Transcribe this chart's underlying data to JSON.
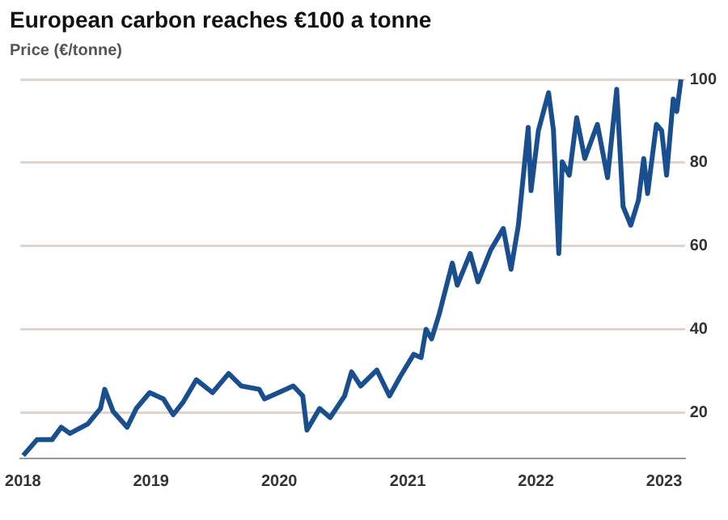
{
  "chart_data": {
    "type": "line",
    "title": "European carbon reaches €100 a tonne",
    "ylabel": "Price (€/tonne)",
    "x": [
      "2018-01-02",
      "2018-02-10",
      "2018-03-25",
      "2018-04-20",
      "2018-05-15",
      "2018-07-05",
      "2018-08-10",
      "2018-08-22",
      "2018-09-15",
      "2018-10-25",
      "2018-11-20",
      "2018-12-28",
      "2019-02-05",
      "2019-03-05",
      "2019-04-03",
      "2019-05-10",
      "2019-06-25",
      "2019-08-10",
      "2019-09-15",
      "2019-11-05",
      "2019-11-20",
      "2020-02-10",
      "2020-03-08",
      "2020-03-20",
      "2020-04-25",
      "2020-05-25",
      "2020-07-05",
      "2020-07-25",
      "2020-08-20",
      "2020-10-05",
      "2020-11-10",
      "2020-12-10",
      "2021-01-18",
      "2021-02-08",
      "2021-02-22",
      "2021-03-10",
      "2021-04-01",
      "2021-05-08",
      "2021-05-22",
      "2021-06-28",
      "2021-07-20",
      "2021-08-25",
      "2021-09-30",
      "2021-10-22",
      "2021-11-12",
      "2021-12-10",
      "2021-12-18",
      "2022-01-08",
      "2022-02-06",
      "2022-02-20",
      "2022-03-07",
      "2022-03-17",
      "2022-04-06",
      "2022-04-27",
      "2022-05-20",
      "2022-06-25",
      "2022-07-24",
      "2022-08-19",
      "2022-09-06",
      "2022-09-28",
      "2022-10-20",
      "2022-11-04",
      "2022-11-15",
      "2022-12-10",
      "2022-12-25",
      "2023-01-08",
      "2023-01-27",
      "2023-02-06",
      "2023-02-18"
    ],
    "series": [
      {
        "color": "#1a4f8f",
        "values": [
          9.7,
          13.5,
          13.5,
          16.5,
          15,
          17.3,
          21,
          25.6,
          20.3,
          16.5,
          21,
          24.8,
          23.3,
          19.5,
          22.6,
          27.9,
          24.8,
          29.4,
          26.4,
          25.6,
          23.3,
          26.4,
          24,
          15.8,
          21,
          18.8,
          24,
          29.8,
          26.4,
          30.2,
          24,
          28.6,
          34,
          33.2,
          40,
          37.7,
          43.8,
          55.9,
          50.6,
          58.2,
          51.4,
          59,
          64.2,
          54.4,
          65,
          88.5,
          73.3,
          87.7,
          96.8,
          87.7,
          58.2,
          80.2,
          77,
          90.8,
          81,
          89.2,
          76.4,
          97.6,
          69.5,
          65,
          71,
          81,
          72.6,
          89.2,
          87.7,
          77,
          95.3,
          92.3,
          100
        ]
      }
    ],
    "xlim": [
      "2017-12-25",
      "2023-03-01"
    ],
    "xticks": [
      {
        "value": "2018-01-01",
        "label": "2018"
      },
      {
        "value": "2019-01-01",
        "label": "2019"
      },
      {
        "value": "2020-01-01",
        "label": "2020"
      },
      {
        "value": "2021-01-01",
        "label": "2021"
      },
      {
        "value": "2022-01-01",
        "label": "2022"
      },
      {
        "value": "2023-01-01",
        "label": "2023"
      }
    ],
    "ylim": [
      9,
      100
    ],
    "yticks": [
      20,
      40,
      60,
      80,
      100
    ],
    "grid": "y",
    "legend": false,
    "marker": "none",
    "line_style": "solid"
  }
}
